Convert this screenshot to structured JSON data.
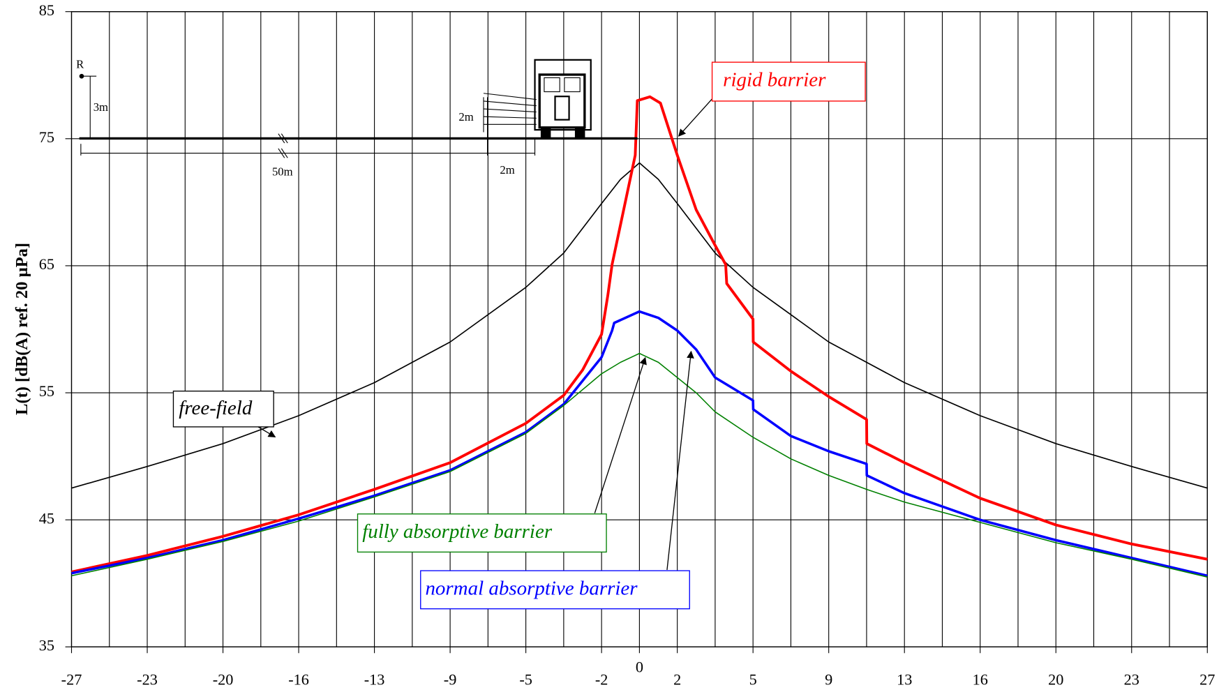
{
  "chart_data": {
    "type": "line",
    "ylabel": "L(t) [dB(A) ref. 20 µPa]",
    "ylim": [
      35,
      85
    ],
    "yticks": [
      35,
      45,
      55,
      65,
      75,
      85
    ],
    "xlim": [
      -27,
      27
    ],
    "xticks": [
      -27,
      {
        "value": -23.4,
        "label": "-23"
      },
      {
        "value": -19.8,
        "label": "-20"
      },
      {
        "value": -16.2,
        "label": "-16"
      },
      {
        "value": -12.6,
        "label": "-13"
      },
      -9,
      {
        "value": -5.4,
        "label": "-5"
      },
      {
        "value": -1.8,
        "label": "-2"
      },
      0,
      {
        "value": 1.8,
        "label": "2"
      },
      {
        "value": 5.4,
        "label": "5"
      },
      9,
      {
        "value": 12.6,
        "label": "13"
      },
      {
        "value": 16.2,
        "label": "16"
      },
      {
        "value": 19.8,
        "label": "20"
      },
      {
        "value": 23.4,
        "label": "23"
      },
      27
    ],
    "xgrid": [
      -27,
      -25.2,
      -23.4,
      -21.6,
      -19.8,
      -18,
      -16.2,
      -14.4,
      -12.6,
      -10.8,
      -9,
      -7.2,
      -5.4,
      -3.6,
      -1.8,
      0,
      1.8,
      3.6,
      5.4,
      7.2,
      9,
      10.8,
      12.6,
      14.4,
      16.2,
      18,
      19.8,
      21.6,
      23.4,
      25.2,
      27
    ],
    "grid": true,
    "series": [
      {
        "name": "free-field",
        "color": "#000000",
        "x": [
          -27,
          -23.4,
          -19.8,
          -16.2,
          -12.6,
          -9,
          -5.4,
          -3.6,
          -1.8,
          -0.9,
          0,
          0.9,
          1.8,
          3.6,
          5.4,
          9,
          12.6,
          16.2,
          19.8,
          23.4,
          27
        ],
        "values": [
          47.5,
          49.2,
          51.0,
          53.2,
          55.8,
          59.0,
          63.3,
          66.0,
          69.9,
          71.8,
          73.1,
          71.8,
          69.9,
          66.0,
          63.3,
          59.0,
          55.8,
          53.2,
          51.0,
          49.2,
          47.5
        ]
      },
      {
        "name": "rigid barrier",
        "color": "#ff0000",
        "x": [
          -27,
          -23.4,
          -19.8,
          -16.2,
          -12.6,
          -9,
          -5.4,
          -3.6,
          -2.7,
          -1.8,
          -1.5,
          -1.3,
          -0.2,
          -0.1,
          0.5,
          1.0,
          1.8,
          2.7,
          3.6,
          4.1,
          4.15,
          5.4,
          5.41,
          7.2,
          9,
          10.8,
          10.81,
          12.6,
          16.2,
          19.8,
          23.4,
          27
        ],
        "values": [
          40.9,
          42.2,
          43.7,
          45.4,
          47.4,
          49.5,
          52.6,
          54.8,
          56.8,
          59.6,
          62.7,
          65.1,
          73.7,
          78.0,
          78.3,
          77.8,
          73.7,
          69.4,
          66.6,
          65.1,
          63.6,
          60.8,
          59.0,
          56.7,
          54.7,
          52.9,
          51.0,
          49.5,
          46.7,
          44.6,
          43.1,
          41.9
        ]
      },
      {
        "name": "normal absorptive barrier",
        "color": "#0000ff",
        "x": [
          -27,
          -23.4,
          -19.8,
          -16.2,
          -12.6,
          -9,
          -5.4,
          -3.6,
          -1.8,
          -1.3,
          -1.2,
          0,
          0.9,
          1.8,
          2.7,
          3.6,
          5.4,
          5.41,
          7.2,
          9,
          10.8,
          10.81,
          12.6,
          16.2,
          19.8,
          23.4,
          27
        ],
        "values": [
          40.8,
          42.0,
          43.4,
          45.1,
          46.9,
          48.9,
          51.9,
          54.1,
          57.8,
          59.9,
          60.5,
          61.4,
          60.9,
          59.9,
          58.4,
          56.2,
          54.4,
          53.7,
          51.6,
          50.4,
          49.4,
          48.5,
          47.1,
          45.0,
          43.4,
          42.0,
          40.6
        ]
      },
      {
        "name": "fully absorptive barrier",
        "color": "#008000",
        "x": [
          -27,
          -23.4,
          -19.8,
          -16.2,
          -12.6,
          -9,
          -5.4,
          -3.6,
          -1.8,
          -0.9,
          0,
          0.9,
          1.8,
          2.7,
          3.6,
          5.4,
          7.2,
          9,
          10.8,
          12.6,
          16.2,
          19.8,
          23.4,
          27
        ],
        "values": [
          40.6,
          41.9,
          43.3,
          44.9,
          46.8,
          48.8,
          51.8,
          54.0,
          56.5,
          57.4,
          58.1,
          57.4,
          56.2,
          55.0,
          53.5,
          51.5,
          49.8,
          48.5,
          47.4,
          46.4,
          44.8,
          43.2,
          41.9,
          40.5
        ]
      }
    ],
    "diagram_labels": [
      "R",
      "3m",
      "2m",
      "50m",
      "2m"
    ]
  }
}
